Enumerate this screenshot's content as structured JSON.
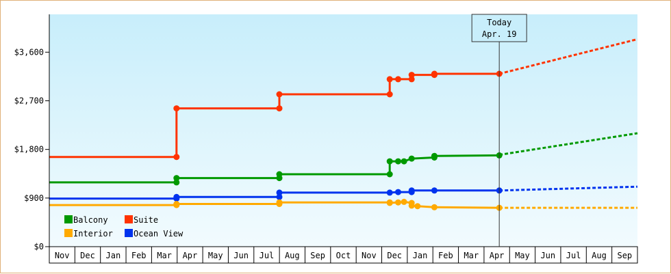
{
  "chart_data": {
    "type": "line",
    "title": "",
    "xlabel": "",
    "ylabel": "",
    "ylim": [
      0,
      4300
    ],
    "y_ticks": [
      0,
      900,
      1800,
      2700,
      3600
    ],
    "y_tick_labels": [
      "$0",
      "$900",
      "$1,800",
      "$2,700",
      "$3,600"
    ],
    "x_range": [
      "2024-11-01",
      "2026-09-30"
    ],
    "x_tick_labels": [
      "Nov",
      "Dec",
      "Jan",
      "Feb",
      "Mar",
      "Apr",
      "May",
      "Jun",
      "Jul",
      "Aug",
      "Sep",
      "Oct",
      "Nov",
      "Dec",
      "Jan",
      "Feb",
      "Mar",
      "Apr",
      "May",
      "Jun",
      "Jul",
      "Aug",
      "Sep"
    ],
    "grid": false,
    "today": {
      "label": "Today",
      "date_label": "Apr. 19",
      "date": "2026-04-19"
    },
    "legend_position": "bottom-left",
    "series": [
      {
        "name": "Suite",
        "color": "#ff3300",
        "points": [
          [
            "2024-11-01",
            1660
          ],
          [
            "2025-04-01",
            1660
          ],
          [
            "2025-04-01",
            2560
          ],
          [
            "2025-08-01",
            2560
          ],
          [
            "2025-08-01",
            2820
          ],
          [
            "2025-12-10",
            2820
          ],
          [
            "2025-12-10",
            3100
          ],
          [
            "2025-12-20",
            3100
          ],
          [
            "2026-01-05",
            3100
          ],
          [
            "2026-01-05",
            3180
          ],
          [
            "2026-02-01",
            3180
          ],
          [
            "2026-02-01",
            3200
          ],
          [
            "2026-04-19",
            3200
          ]
        ],
        "forecast": [
          [
            "2026-04-19",
            3200
          ],
          [
            "2026-09-30",
            3840
          ]
        ]
      },
      {
        "name": "Balcony",
        "color": "#009900",
        "points": [
          [
            "2024-11-01",
            1190
          ],
          [
            "2025-04-01",
            1190
          ],
          [
            "2025-04-01",
            1270
          ],
          [
            "2025-08-01",
            1270
          ],
          [
            "2025-08-01",
            1340
          ],
          [
            "2025-12-10",
            1340
          ],
          [
            "2025-12-10",
            1580
          ],
          [
            "2025-12-20",
            1580
          ],
          [
            "2025-12-27",
            1580
          ],
          [
            "2026-01-05",
            1630
          ],
          [
            "2026-02-01",
            1650
          ],
          [
            "2026-02-01",
            1680
          ],
          [
            "2026-04-19",
            1690
          ]
        ],
        "forecast": [
          [
            "2026-04-19",
            1700
          ],
          [
            "2026-09-30",
            2100
          ]
        ]
      },
      {
        "name": "Ocean View",
        "color": "#0033ee",
        "points": [
          [
            "2024-11-01",
            890
          ],
          [
            "2025-04-01",
            890
          ],
          [
            "2025-04-01",
            920
          ],
          [
            "2025-08-01",
            920
          ],
          [
            "2025-08-01",
            1000
          ],
          [
            "2025-12-10",
            1000
          ],
          [
            "2025-12-20",
            1010
          ],
          [
            "2026-01-05",
            1010
          ],
          [
            "2026-01-05",
            1040
          ],
          [
            "2026-02-01",
            1040
          ],
          [
            "2026-04-19",
            1040
          ]
        ],
        "forecast": [
          [
            "2026-04-19",
            1040
          ],
          [
            "2026-09-30",
            1110
          ]
        ]
      },
      {
        "name": "Interior",
        "color": "#ffaa00",
        "points": [
          [
            "2024-11-01",
            770
          ],
          [
            "2025-04-01",
            770
          ],
          [
            "2025-04-01",
            790
          ],
          [
            "2025-08-01",
            790
          ],
          [
            "2025-08-01",
            820
          ],
          [
            "2025-12-10",
            820
          ],
          [
            "2025-12-10",
            810
          ],
          [
            "2025-12-20",
            820
          ],
          [
            "2025-12-27",
            830
          ],
          [
            "2026-01-05",
            810
          ],
          [
            "2026-01-05",
            760
          ],
          [
            "2026-01-12",
            750
          ],
          [
            "2026-02-01",
            730
          ],
          [
            "2026-04-19",
            720
          ]
        ],
        "forecast": [
          [
            "2026-04-19",
            720
          ],
          [
            "2026-09-30",
            720
          ]
        ]
      }
    ],
    "legend": [
      {
        "name": "Balcony",
        "color": "#009900"
      },
      {
        "name": "Suite",
        "color": "#ff3300"
      },
      {
        "name": "Interior",
        "color": "#ffaa00"
      },
      {
        "name": "Ocean View",
        "color": "#0033ee"
      }
    ]
  }
}
